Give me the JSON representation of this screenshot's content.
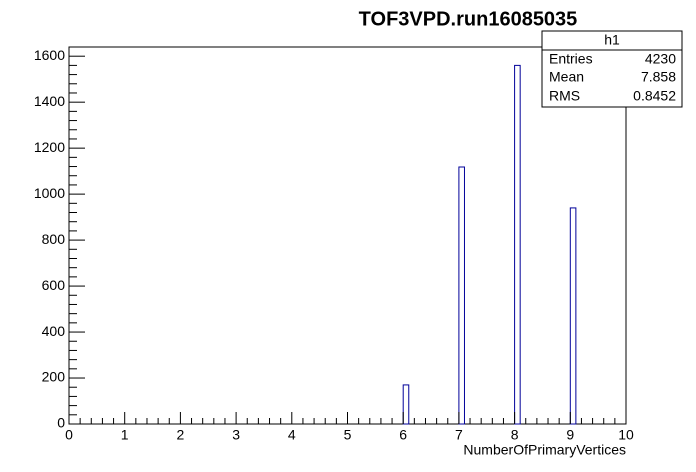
{
  "chart_data": {
    "type": "histogram",
    "title": "TOF3VPD.run16085035",
    "x_label": "NumberOfPrimaryVertices",
    "bins": [
      0,
      0.1,
      0.2,
      0.3,
      0.4,
      0.5,
      0.6,
      0.7,
      0.8,
      0.9,
      1,
      1.1,
      1.2,
      1.3,
      1.4,
      1.5,
      1.6,
      1.7,
      1.8,
      1.9,
      2,
      2.1,
      2.2,
      2.3,
      2.4,
      2.5,
      2.6,
      2.7,
      2.8,
      2.9,
      3,
      3.1,
      3.2,
      3.3,
      3.4,
      3.5,
      3.6,
      3.7,
      3.8,
      3.9,
      4,
      4.1,
      4.2,
      4.3,
      4.4,
      4.5,
      4.6,
      4.7,
      4.8,
      4.9,
      5,
      5.1,
      5.2,
      5.3,
      5.4,
      5.5,
      5.6,
      5.7,
      5.8,
      5.9,
      6,
      6.1,
      6.2,
      6.3,
      6.4,
      6.5,
      6.6,
      6.7,
      6.8,
      6.9,
      7,
      7.1,
      7.2,
      7.3,
      7.4,
      7.5,
      7.6,
      7.7,
      7.8,
      7.9,
      8,
      8.1,
      8.2,
      8.3,
      8.4,
      8.5,
      8.6,
      8.7,
      8.8,
      8.9,
      9,
      9.1,
      9.2,
      9.3,
      9.4,
      9.5,
      9.6,
      9.7,
      9.8,
      9.9,
      10
    ],
    "values": [
      0,
      0,
      0,
      0,
      0,
      0,
      0,
      0,
      0,
      0,
      0,
      0,
      0,
      0,
      0,
      0,
      0,
      0,
      0,
      0,
      0,
      0,
      0,
      0,
      0,
      0,
      0,
      0,
      0,
      0,
      0,
      0,
      0,
      0,
      0,
      0,
      0,
      0,
      0,
      0,
      0,
      0,
      0,
      0,
      0,
      0,
      0,
      0,
      0,
      0,
      0,
      0,
      0,
      0,
      0,
      0,
      0,
      0,
      0,
      0,
      170,
      0,
      0,
      0,
      0,
      0,
      0,
      0,
      0,
      0,
      1118,
      0,
      0,
      0,
      0,
      0,
      0,
      0,
      0,
      0,
      1560,
      0,
      0,
      0,
      0,
      0,
      0,
      0,
      0,
      0,
      940,
      0,
      0,
      0,
      0,
      0,
      0,
      0,
      0,
      0
    ],
    "color": "#000099",
    "xlim": [
      0,
      10
    ],
    "xticks": [
      0,
      1,
      2,
      3,
      4,
      5,
      6,
      7,
      8,
      9,
      10
    ],
    "ylim": [
      0,
      1640
    ],
    "yticks": [
      0,
      200,
      400,
      600,
      800,
      1000,
      1200,
      1400,
      1600
    ],
    "stats": {
      "title": "h1",
      "rows": [
        {
          "label": "Entries",
          "value": "4230"
        },
        {
          "label": "Mean",
          "value": "7.858"
        },
        {
          "label": "RMS",
          "value": "0.8452"
        }
      ]
    }
  }
}
